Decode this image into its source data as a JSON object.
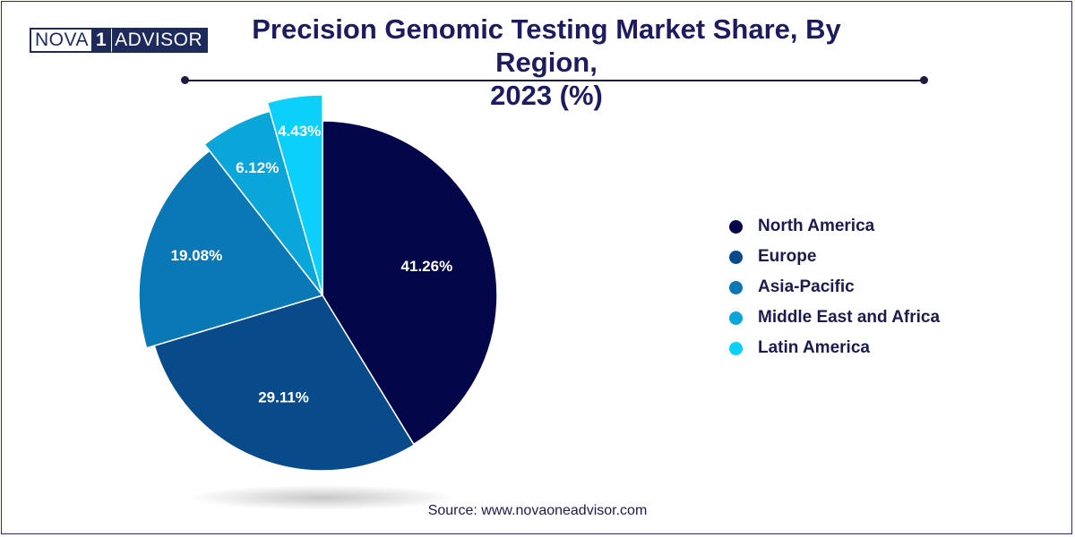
{
  "logo": {
    "left": "NOVA",
    "number": "1",
    "right": "ADVISOR"
  },
  "chart_data": {
    "type": "pie",
    "title": "Precision Genomic Testing Market Share, By Region, 2023 (%)",
    "title_lines": [
      "Precision Genomic Testing Market Share, By Region,",
      "2023 (%)"
    ],
    "slices": [
      {
        "name": "North America",
        "value": 41.26,
        "label": "41.26%",
        "color": "#04064a"
      },
      {
        "name": "Europe",
        "value": 29.11,
        "label": "29.11%",
        "color": "#094b8a"
      },
      {
        "name": "Asia-Pacific",
        "value": 19.08,
        "label": "19.08%",
        "color": "#0a78b5"
      },
      {
        "name": "Middle East and Africa",
        "value": 6.12,
        "label": "6.12%",
        "color": "#0aa5d9"
      },
      {
        "name": "Latin America",
        "value": 4.43,
        "label": "4.43%",
        "color": "#0ad0fb"
      }
    ],
    "legend_position": "right"
  },
  "source": "Source: www.novaoneadvisor.com"
}
